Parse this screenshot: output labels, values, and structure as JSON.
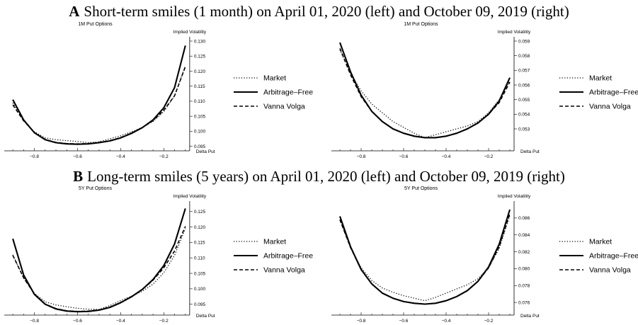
{
  "panels": [
    {
      "letter": "A",
      "caption": "Short-term smiles (1 month) on April 01, 2020 (left) and October 09, 2019 (right)"
    },
    {
      "letter": "B",
      "caption": "Long-term smiles (5 years) on April 01, 2020 (left) and October 09, 2019 (right)"
    }
  ],
  "chart_data": [
    {
      "type": "line",
      "title": "1M Put Options",
      "xlabel": "Delta Put",
      "ylabel": "Implied Volatility",
      "xlim": [
        -0.92,
        -0.05
      ],
      "ylim": [
        0.0935,
        0.13
      ],
      "xticks": [
        -0.8,
        -0.6,
        -0.4,
        -0.2
      ],
      "yticks": [
        0.095,
        0.1,
        0.105,
        0.11,
        0.115,
        0.12,
        0.125,
        0.13
      ],
      "tick_decimals": 3,
      "legend_position": "right",
      "series": [
        {
          "name": "Market",
          "style": "dotted",
          "x": [
            -0.9,
            -0.85,
            -0.8,
            -0.75,
            -0.7,
            -0.65,
            -0.6,
            -0.55,
            -0.5,
            -0.45,
            -0.4,
            -0.35,
            -0.3,
            -0.25,
            -0.2,
            -0.15,
            -0.1
          ],
          "y": [
            0.1095,
            0.1035,
            0.0998,
            0.0978,
            0.0972,
            0.0969,
            0.0966,
            0.0962,
            0.0965,
            0.0975,
            0.0985,
            0.0998,
            0.1013,
            0.1033,
            0.1065,
            0.1118,
            0.1218
          ]
        },
        {
          "name": "Arbitrage–Free",
          "style": "solid",
          "x": [
            -0.9,
            -0.85,
            -0.8,
            -0.75,
            -0.7,
            -0.65,
            -0.6,
            -0.55,
            -0.5,
            -0.45,
            -0.4,
            -0.35,
            -0.3,
            -0.25,
            -0.2,
            -0.15,
            -0.1
          ],
          "y": [
            0.1105,
            0.1038,
            0.0995,
            0.0972,
            0.0962,
            0.0958,
            0.0957,
            0.0958,
            0.0962,
            0.0968,
            0.0978,
            0.0993,
            0.1012,
            0.1038,
            0.1078,
            0.1145,
            0.1285
          ]
        },
        {
          "name": "Vanna Volga",
          "style": "dashed",
          "x": [
            -0.9,
            -0.85,
            -0.8,
            -0.75,
            -0.7,
            -0.65,
            -0.6,
            -0.55,
            -0.5,
            -0.45,
            -0.4,
            -0.35,
            -0.3,
            -0.25,
            -0.2,
            -0.15,
            -0.1
          ],
          "y": [
            0.1088,
            0.1035,
            0.0996,
            0.0973,
            0.0963,
            0.0959,
            0.0958,
            0.0959,
            0.0963,
            0.0969,
            0.0979,
            0.0994,
            0.1012,
            0.1035,
            0.107,
            0.1118,
            0.1215
          ]
        }
      ]
    },
    {
      "type": "line",
      "title": "1M Put Options",
      "xlabel": "Delta Put",
      "ylabel": "Implied Volatility",
      "xlim": [
        -0.92,
        -0.05
      ],
      "ylim": [
        0.0515,
        0.059
      ],
      "xticks": [
        -0.8,
        -0.6,
        -0.4,
        -0.2
      ],
      "yticks": [
        0.053,
        0.054,
        0.055,
        0.056,
        0.057,
        0.058,
        0.059
      ],
      "tick_decimals": 3,
      "legend_position": "right",
      "series": [
        {
          "name": "Market",
          "style": "dotted",
          "x": [
            -0.9,
            -0.85,
            -0.8,
            -0.75,
            -0.7,
            -0.65,
            -0.6,
            -0.55,
            -0.5,
            -0.45,
            -0.4,
            -0.35,
            -0.3,
            -0.25,
            -0.2,
            -0.15,
            -0.1
          ],
          "y": [
            0.0584,
            0.0568,
            0.0556,
            0.0547,
            0.0541,
            0.0535,
            0.0531,
            0.0527,
            0.0524,
            0.0526,
            0.0528,
            0.053,
            0.0532,
            0.0535,
            0.0541,
            0.055,
            0.0563
          ]
        },
        {
          "name": "Arbitrage–Free",
          "style": "solid",
          "x": [
            -0.9,
            -0.85,
            -0.8,
            -0.75,
            -0.7,
            -0.65,
            -0.6,
            -0.55,
            -0.5,
            -0.45,
            -0.4,
            -0.35,
            -0.3,
            -0.25,
            -0.2,
            -0.15,
            -0.1
          ],
          "y": [
            0.0589,
            0.0569,
            0.0553,
            0.0542,
            0.0535,
            0.053,
            0.0527,
            0.0525,
            0.0524,
            0.0524,
            0.0525,
            0.0527,
            0.053,
            0.0534,
            0.054,
            0.0549,
            0.0565
          ]
        },
        {
          "name": "Vanna Volga",
          "style": "dashed",
          "x": [
            -0.9,
            -0.85,
            -0.8,
            -0.75,
            -0.7,
            -0.65,
            -0.6,
            -0.55,
            -0.5,
            -0.45,
            -0.4,
            -0.35,
            -0.3,
            -0.25,
            -0.2,
            -0.15,
            -0.1
          ],
          "y": [
            0.0585,
            0.0567,
            0.0552,
            0.0542,
            0.0535,
            0.053,
            0.0527,
            0.0525,
            0.0524,
            0.0524,
            0.0525,
            0.0527,
            0.053,
            0.0534,
            0.054,
            0.0548,
            0.0562
          ]
        }
      ]
    },
    {
      "type": "line",
      "title": "5Y Put Options",
      "xlabel": "Delta Put",
      "ylabel": "Implied Volatility",
      "xlim": [
        -0.92,
        -0.05
      ],
      "ylim": [
        0.0915,
        0.127
      ],
      "xticks": [
        -0.8,
        -0.6,
        -0.4,
        -0.2
      ],
      "yticks": [
        0.095,
        0.1,
        0.105,
        0.11,
        0.115,
        0.12,
        0.125
      ],
      "tick_decimals": 3,
      "legend_position": "right",
      "series": [
        {
          "name": "Market",
          "style": "dotted",
          "x": [
            -0.9,
            -0.85,
            -0.8,
            -0.75,
            -0.7,
            -0.65,
            -0.6,
            -0.55,
            -0.5,
            -0.45,
            -0.4,
            -0.35,
            -0.3,
            -0.25,
            -0.2,
            -0.15,
            -0.1
          ],
          "y": [
            0.111,
            0.1035,
            0.0985,
            0.0958,
            0.0948,
            0.0942,
            0.0937,
            0.0934,
            0.0933,
            0.0946,
            0.0962,
            0.0976,
            0.0992,
            0.1015,
            0.1052,
            0.1108,
            0.1195
          ]
        },
        {
          "name": "Arbitrage–Free",
          "style": "solid",
          "x": [
            -0.9,
            -0.85,
            -0.8,
            -0.75,
            -0.7,
            -0.65,
            -0.6,
            -0.55,
            -0.5,
            -0.45,
            -0.4,
            -0.35,
            -0.3,
            -0.25,
            -0.2,
            -0.15,
            -0.1
          ],
          "y": [
            0.1162,
            0.1045,
            0.0982,
            0.095,
            0.0935,
            0.0928,
            0.0926,
            0.0927,
            0.0931,
            0.094,
            0.0955,
            0.0974,
            0.0998,
            0.103,
            0.1075,
            0.1145,
            0.126
          ]
        },
        {
          "name": "Vanna Volga",
          "style": "dashed",
          "x": [
            -0.9,
            -0.85,
            -0.8,
            -0.75,
            -0.7,
            -0.65,
            -0.6,
            -0.55,
            -0.5,
            -0.45,
            -0.4,
            -0.35,
            -0.3,
            -0.25,
            -0.2,
            -0.15,
            -0.1
          ],
          "y": [
            0.1108,
            0.1036,
            0.0983,
            0.0951,
            0.0936,
            0.0929,
            0.0927,
            0.0928,
            0.0932,
            0.0941,
            0.0956,
            0.0975,
            0.0998,
            0.1028,
            0.1068,
            0.1122,
            0.1202
          ]
        }
      ]
    },
    {
      "type": "line",
      "title": "5Y Put Options",
      "xlabel": "Delta Put",
      "ylabel": "Implied Volatility",
      "xlim": [
        -0.92,
        -0.05
      ],
      "ylim": [
        0.0745,
        0.0875
      ],
      "xticks": [
        -0.8,
        -0.6,
        -0.4,
        -0.2
      ],
      "yticks": [
        0.076,
        0.078,
        0.08,
        0.082,
        0.084,
        0.086
      ],
      "tick_decimals": 3,
      "legend_position": "right",
      "series": [
        {
          "name": "Market",
          "style": "dotted",
          "x": [
            -0.9,
            -0.85,
            -0.8,
            -0.75,
            -0.7,
            -0.65,
            -0.6,
            -0.55,
            -0.5,
            -0.45,
            -0.4,
            -0.35,
            -0.3,
            -0.25,
            -0.2,
            -0.15,
            -0.1
          ],
          "y": [
            0.0858,
            0.0825,
            0.0801,
            0.0786,
            0.0777,
            0.0772,
            0.0768,
            0.0765,
            0.0762,
            0.0766,
            0.0771,
            0.0776,
            0.0781,
            0.0788,
            0.0801,
            0.0824,
            0.0863
          ]
        },
        {
          "name": "Arbitrage–Free",
          "style": "solid",
          "x": [
            -0.9,
            -0.85,
            -0.8,
            -0.75,
            -0.7,
            -0.65,
            -0.6,
            -0.55,
            -0.5,
            -0.45,
            -0.4,
            -0.35,
            -0.3,
            -0.25,
            -0.2,
            -0.15,
            -0.1
          ],
          "y": [
            0.0862,
            0.0826,
            0.0799,
            0.0782,
            0.0771,
            0.0765,
            0.0761,
            0.0759,
            0.0758,
            0.0759,
            0.0762,
            0.0767,
            0.0774,
            0.0785,
            0.0802,
            0.0829,
            0.087
          ]
        },
        {
          "name": "Vanna Volga",
          "style": "dashed",
          "x": [
            -0.9,
            -0.85,
            -0.8,
            -0.75,
            -0.7,
            -0.65,
            -0.6,
            -0.55,
            -0.5,
            -0.45,
            -0.4,
            -0.35,
            -0.3,
            -0.25,
            -0.2,
            -0.15,
            -0.1
          ],
          "y": [
            0.0858,
            0.0825,
            0.0799,
            0.0782,
            0.0771,
            0.0765,
            0.0761,
            0.0759,
            0.0758,
            0.0759,
            0.0762,
            0.0767,
            0.0774,
            0.0785,
            0.0801,
            0.0826,
            0.0865
          ]
        }
      ]
    }
  ]
}
